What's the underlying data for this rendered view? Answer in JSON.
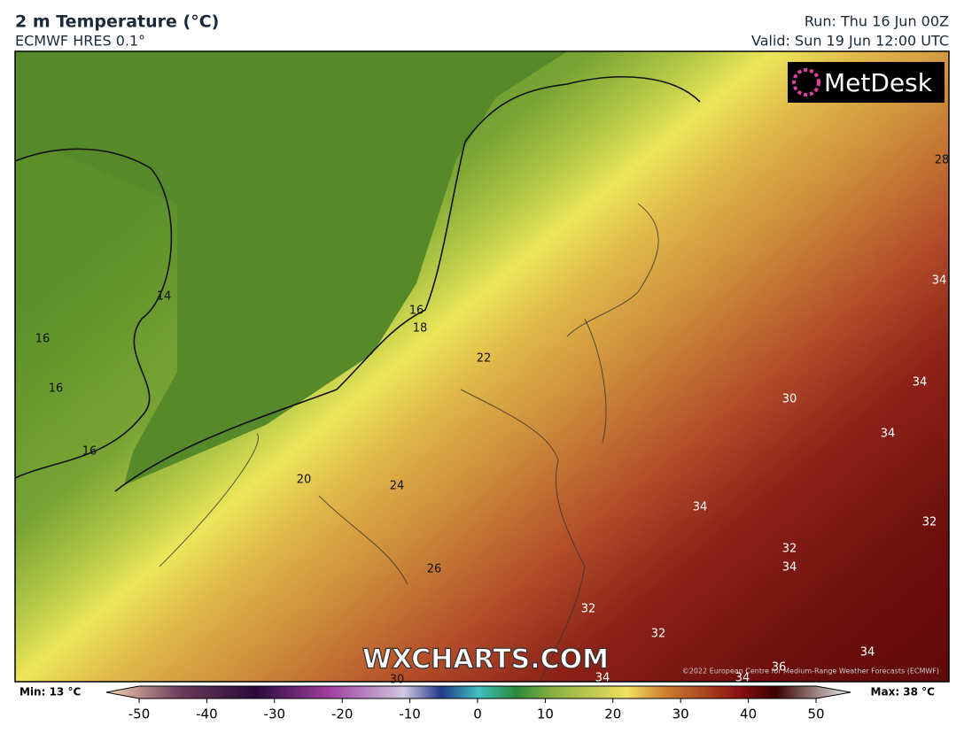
{
  "header": {
    "title": "2 m Temperature (°C)",
    "subtitle": "ECMWF HRES 0.1°",
    "run": "Run: Thu 16 Jun 00Z",
    "valid": "Valid: Sun 19 Jun 12:00 UTC"
  },
  "logo": "MetDesk",
  "watermark": "WXCHARTS.COM",
  "copyright": "©2022 European Centre for Medium-Range Weather Forecasts (ECMWF)",
  "contour_labels": [
    14,
    16,
    16,
    16,
    16,
    18,
    22,
    20,
    24,
    26,
    28,
    34,
    34,
    30,
    34,
    34,
    32,
    32,
    34,
    32,
    32,
    34,
    36,
    30,
    34,
    34
  ],
  "legend": {
    "min": "Min: 13 °C",
    "max": "Max: 38 °C",
    "ticks": [
      -50,
      -40,
      -30,
      -20,
      -10,
      0,
      10,
      20,
      30,
      40,
      50
    ]
  }
}
